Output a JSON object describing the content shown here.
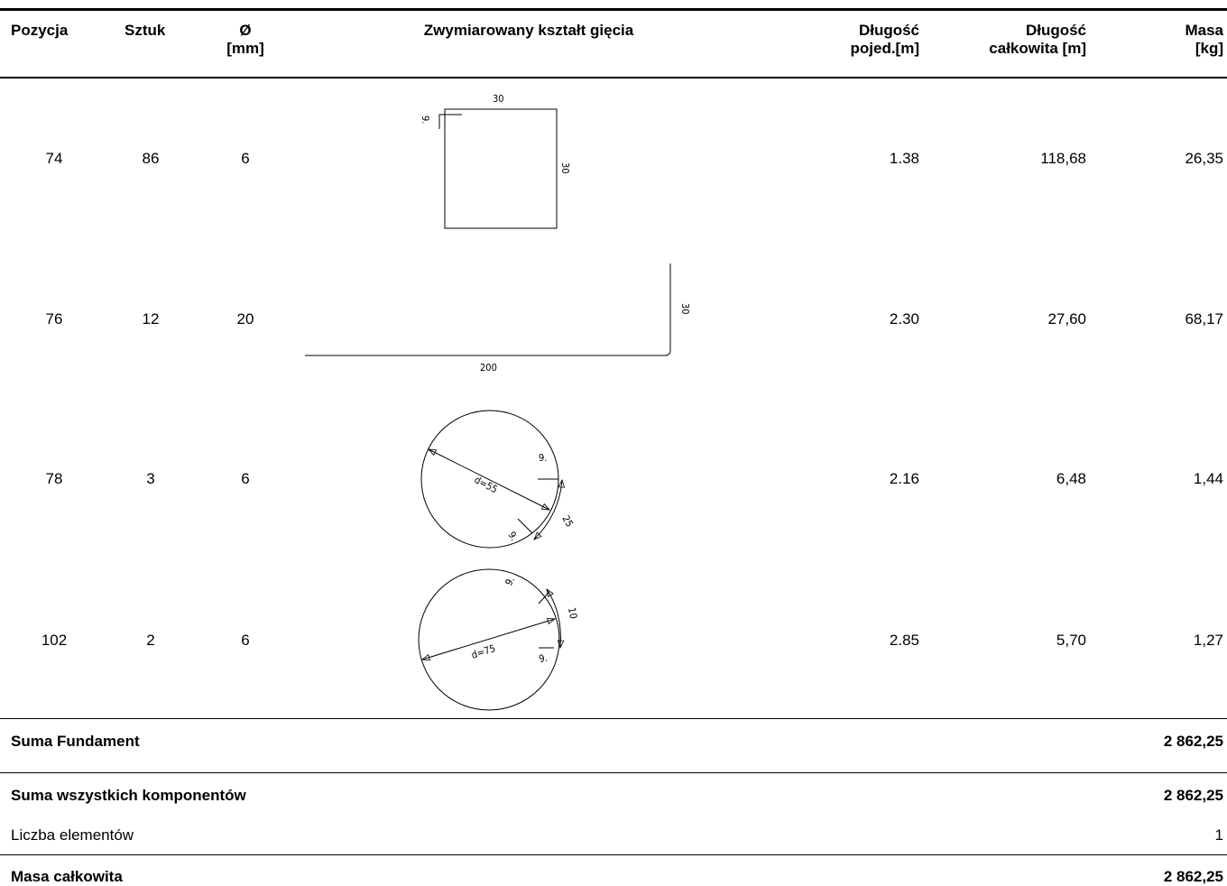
{
  "header": {
    "pozycja": "Pozycja",
    "sztuk": "Sztuk",
    "diam_symbol": "Ø",
    "diam_unit": "[mm]",
    "shape": "Zwymiarowany kształt gięcia",
    "len_single_1": "Długość",
    "len_single_2": "pojed.[m]",
    "len_total_1": "Długość",
    "len_total_2": "całkowita [m]",
    "mass_1": "Masa",
    "mass_2": "[kg]"
  },
  "rows": [
    {
      "pozycja": "74",
      "sztuk": "86",
      "diameter": "6",
      "len_single": "1.38",
      "len_total": "118,68",
      "mass": "26,35",
      "shape": {
        "type": "stirrup-square",
        "dims": [
          "30",
          "30",
          "9."
        ]
      }
    },
    {
      "pozycja": "76",
      "sztuk": "12",
      "diameter": "20",
      "len_single": "2.30",
      "len_total": "27,60",
      "mass": "68,17",
      "shape": {
        "type": "L-bar",
        "dims": [
          "200",
          "30"
        ]
      }
    },
    {
      "pozycja": "78",
      "sztuk": "3",
      "diameter": "6",
      "len_single": "2.16",
      "len_total": "6,48",
      "mass": "1,44",
      "shape": {
        "type": "circular-hoop",
        "dims": [
          "d=55",
          "25",
          "9.",
          "9."
        ]
      }
    },
    {
      "pozycja": "102",
      "sztuk": "2",
      "diameter": "6",
      "len_single": "2.85",
      "len_total": "5,70",
      "mass": "1,27",
      "shape": {
        "type": "circular-hoop",
        "dims": [
          "d=75",
          "10",
          "9.",
          "9."
        ]
      }
    }
  ],
  "summary": {
    "fundament_label": "Suma Fundament",
    "fundament_value": "2 862,25",
    "all_label": "Suma wszystkich komponentów",
    "all_value": "2 862,25",
    "count_label": "Liczba elementów",
    "count_value": "1",
    "total_label": "Masa całkowita",
    "total_value": "2 862,25"
  }
}
